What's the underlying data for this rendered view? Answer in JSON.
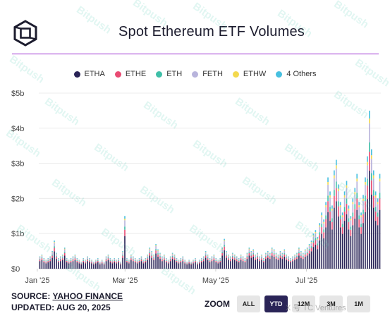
{
  "header": {
    "title": "Spot Ethereum ETF Volumes",
    "logo_icon": "cube-logo-icon"
  },
  "legend": [
    {
      "label": "ETHA",
      "color": "#2a2457"
    },
    {
      "label": "ETHE",
      "color": "#e94b73"
    },
    {
      "label": "ETH",
      "color": "#3fbfa8"
    },
    {
      "label": "FETH",
      "color": "#b8b4dc"
    },
    {
      "label": "ETHW",
      "color": "#f3d94e"
    },
    {
      "label": "4 Others",
      "color": "#47c0e0"
    }
  ],
  "chart_data": {
    "type": "bar",
    "stacked": true,
    "ylim": [
      0,
      5
    ],
    "y_ticks": [
      "$0",
      "$1b",
      "$2b",
      "$3b",
      "$4b",
      "$5b"
    ],
    "x_ticks": [
      {
        "label": "Jan '25",
        "month": "2025-01"
      },
      {
        "label": "Mar '25",
        "month": "2025-03"
      },
      {
        "label": "May '25",
        "month": "2025-05"
      },
      {
        "label": "Jul '25",
        "month": "2025-07"
      }
    ],
    "x_range": [
      "2025-01-02",
      "2025-08-20"
    ],
    "unit": "billion USD",
    "series_names": [
      "ETHA",
      "ETHE",
      "ETH",
      "FETH",
      "ETHW",
      "4 Others"
    ],
    "totals": [
      0.35,
      0.4,
      0.3,
      0.25,
      0.3,
      0.35,
      0.5,
      0.8,
      0.45,
      0.3,
      0.35,
      0.4,
      0.6,
      0.3,
      0.25,
      0.3,
      0.35,
      0.4,
      0.3,
      0.25,
      0.2,
      0.3,
      0.25,
      0.35,
      0.3,
      0.25,
      0.2,
      0.25,
      0.3,
      0.2,
      0.25,
      0.2,
      0.35,
      0.4,
      0.3,
      0.25,
      0.3,
      0.25,
      0.3,
      0.2,
      0.5,
      1.5,
      0.3,
      0.25,
      0.4,
      0.35,
      0.3,
      0.25,
      0.3,
      0.35,
      0.25,
      0.3,
      0.4,
      0.6,
      0.5,
      0.4,
      0.7,
      0.55,
      0.45,
      0.35,
      0.4,
      0.3,
      0.25,
      0.35,
      0.45,
      0.4,
      0.3,
      0.25,
      0.3,
      0.35,
      0.25,
      0.2,
      0.25,
      0.2,
      0.25,
      0.3,
      0.2,
      0.25,
      0.3,
      0.35,
      0.5,
      0.4,
      0.3,
      0.35,
      0.4,
      0.3,
      0.25,
      0.3,
      0.6,
      0.85,
      0.5,
      0.4,
      0.35,
      0.45,
      0.4,
      0.35,
      0.3,
      0.4,
      0.35,
      0.3,
      0.45,
      0.6,
      0.5,
      0.55,
      0.4,
      0.45,
      0.35,
      0.4,
      0.3,
      0.45,
      0.5,
      0.45,
      0.6,
      0.55,
      0.45,
      0.4,
      0.5,
      0.45,
      0.55,
      0.4,
      0.35,
      0.3,
      0.35,
      0.4,
      0.45,
      0.6,
      0.5,
      0.45,
      0.55,
      0.6,
      0.7,
      0.8,
      1.0,
      1.1,
      0.9,
      1.3,
      1.6,
      1.4,
      1.9,
      2.6,
      2.2,
      1.8,
      2.8,
      3.1,
      2.4,
      1.9,
      1.6,
      2.2,
      2.5,
      1.8,
      1.5,
      2.0,
      2.3,
      2.7,
      1.9,
      1.6,
      2.1,
      2.6,
      3.2,
      4.5,
      3.4,
      2.8,
      2.2,
      2.0,
      2.7
    ]
  },
  "footer": {
    "source_prefix": "SOURCE:",
    "source_link": "YAHOO FINANCE",
    "updated": "UPDATED: AUG 20, 2025",
    "zoom_label": "ZOOM",
    "zoom_options": [
      "ALL",
      "YTD",
      "12M",
      "3M",
      "1M"
    ],
    "zoom_active": "YTD"
  },
  "watermark": {
    "text": "Bitpush",
    "overlay_text": "X 号 TC Ventures"
  }
}
